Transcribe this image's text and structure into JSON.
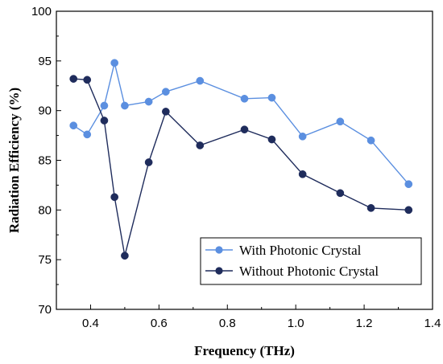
{
  "chart_data": {
    "type": "line",
    "title": "",
    "xlabel": "Frequency (THz)",
    "ylabel": "Radiation Efficiency (%)",
    "xlim": [
      0.3,
      1.4
    ],
    "ylim": [
      70,
      100
    ],
    "x_ticks": [
      "0.4",
      "0.6",
      "0.8",
      "1.0",
      "1.2",
      "1.4"
    ],
    "y_ticks": [
      "70",
      "75",
      "80",
      "85",
      "90",
      "95",
      "100"
    ],
    "grid": false,
    "legend_position": "bottom-right",
    "series": [
      {
        "name": "With Photonic Crystal",
        "color": "#5b8fe0",
        "marker": "circle",
        "points": [
          {
            "x": 0.35,
            "y": 88.5
          },
          {
            "x": 0.39,
            "y": 87.6
          },
          {
            "x": 0.44,
            "y": 90.5
          },
          {
            "x": 0.47,
            "y": 94.8
          },
          {
            "x": 0.5,
            "y": 90.5
          },
          {
            "x": 0.57,
            "y": 90.9
          },
          {
            "x": 0.62,
            "y": 91.9
          },
          {
            "x": 0.72,
            "y": 93.0
          },
          {
            "x": 0.85,
            "y": 91.2
          },
          {
            "x": 0.93,
            "y": 91.3
          },
          {
            "x": 1.02,
            "y": 87.4
          },
          {
            "x": 1.13,
            "y": 88.9
          },
          {
            "x": 1.22,
            "y": 87.0
          },
          {
            "x": 1.33,
            "y": 82.6
          }
        ]
      },
      {
        "name": "Without Photonic Crystal",
        "color": "#1f2c5c",
        "marker": "circle",
        "points": [
          {
            "x": 0.35,
            "y": 93.2
          },
          {
            "x": 0.39,
            "y": 93.1
          },
          {
            "x": 0.44,
            "y": 89.0
          },
          {
            "x": 0.47,
            "y": 81.3
          },
          {
            "x": 0.5,
            "y": 75.4
          },
          {
            "x": 0.57,
            "y": 84.8
          },
          {
            "x": 0.62,
            "y": 89.9
          },
          {
            "x": 0.72,
            "y": 86.5
          },
          {
            "x": 0.85,
            "y": 88.1
          },
          {
            "x": 0.93,
            "y": 87.1
          },
          {
            "x": 1.02,
            "y": 83.6
          },
          {
            "x": 1.13,
            "y": 81.7
          },
          {
            "x": 1.22,
            "y": 80.2
          },
          {
            "x": 1.33,
            "y": 80.0
          }
        ]
      }
    ]
  }
}
